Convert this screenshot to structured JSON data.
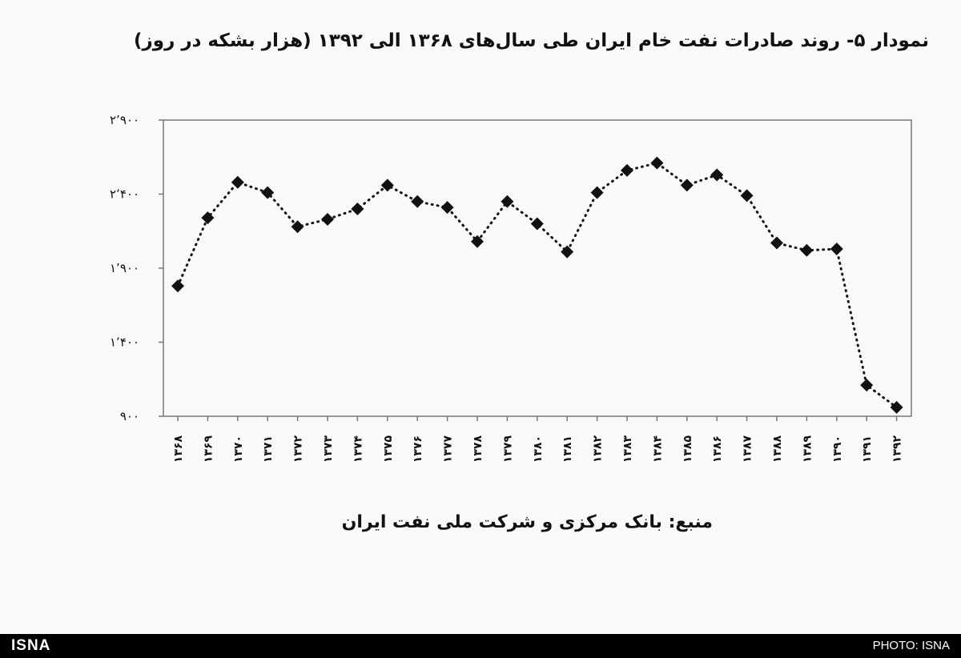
{
  "title": "نمودار ۵- روند صادرات نفت خام ایران طی سال‌های ۱۳۶۸ الی ۱۳۹۲ (هزار بشکه در روز)",
  "source": "منبع: بانک مرکزی و شرکت ملی نفت ایران",
  "footer": {
    "logo": "ISNA",
    "credit": "PHOTO: ISNA"
  },
  "colors": {
    "marker": "#111111",
    "line": "#111111",
    "frame": "#777777",
    "footer_bg": "#000000"
  },
  "chart_data": {
    "type": "line",
    "line_style": "dotted",
    "marker": "diamond",
    "grid": false,
    "legend": "none",
    "title": "نمودار ۵- روند صادرات نفت خام ایران طی سال‌های ۱۳۶۸ الی ۱۳۹۲ (هزار بشکه در روز)",
    "xlabel": "",
    "ylabel": "",
    "ylim": [
      900,
      2900
    ],
    "yticks": [
      900,
      1400,
      1900,
      2400,
      2900
    ],
    "ytick_labels": [
      "۹۰۰",
      "۱٬۴۰۰",
      "۱٬۹۰۰",
      "۲٬۴۰۰",
      "۲٬۹۰۰"
    ],
    "categories": [
      "۱۳۶۸",
      "۱۳۶۹",
      "۱۳۷۰",
      "۱۳۷۱",
      "۱۳۷۲",
      "۱۳۷۳",
      "۱۳۷۴",
      "۱۳۷۵",
      "۱۳۷۶",
      "۱۳۷۷",
      "۱۳۷۸",
      "۱۳۷۹",
      "۱۳۸۰",
      "۱۳۸۱",
      "۱۳۸۲",
      "۱۳۸۳",
      "۱۳۸۴",
      "۱۳۸۵",
      "۱۳۸۶",
      "۱۳۸۷",
      "۱۳۸۸",
      "۱۳۸۹",
      "۱۳۹۰",
      "۱۳۹۱",
      "۱۳۹۲"
    ],
    "values": [
      1780,
      2240,
      2480,
      2410,
      2180,
      2230,
      2300,
      2460,
      2350,
      2310,
      2080,
      2350,
      2200,
      2010,
      2410,
      2560,
      2610,
      2460,
      2530,
      2390,
      2070,
      2020,
      2030,
      1110,
      960
    ]
  }
}
